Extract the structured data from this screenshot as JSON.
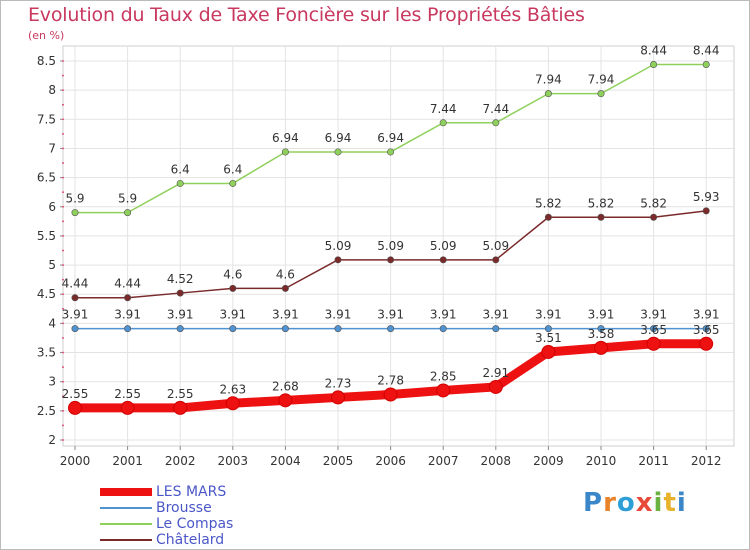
{
  "header": {
    "title": "Evolution du Taux de Taxe Foncière sur les Propriétés Bâties",
    "unit": "(en %)"
  },
  "brand": {
    "letters": [
      "P",
      "r",
      "o",
      "x",
      "i",
      "t",
      "i"
    ],
    "colors": [
      "#3a86c8",
      "#e8832a",
      "#2e9fd6",
      "#e84a3a",
      "#6ab33e",
      "#e8b22a",
      "#3a86c8"
    ]
  },
  "chart_data": {
    "type": "line",
    "title": "Evolution du Taux de Taxe Foncière sur les Propriétés Bâties",
    "ylabel": "(en %)",
    "x": [
      "2000",
      "2001",
      "2002",
      "2003",
      "2004",
      "2005",
      "2006",
      "2007",
      "2008",
      "2009",
      "2010",
      "2011",
      "2012"
    ],
    "ylim": [
      2,
      8.5
    ],
    "yticks": [
      "2",
      "2.5",
      "3",
      "3.5",
      "4",
      "4.5",
      "5",
      "5.5",
      "6",
      "6.5",
      "7",
      "7.5",
      "8",
      "8.5"
    ],
    "grid": true,
    "legend_position": "bottom-left",
    "series": [
      {
        "name": "LES MARS",
        "color": "#ee1111",
        "values": [
          2.55,
          2.55,
          2.55,
          2.63,
          2.68,
          2.73,
          2.78,
          2.85,
          2.91,
          3.51,
          3.58,
          3.65,
          3.65
        ],
        "labels": [
          "2.55",
          "2.55",
          "2.55",
          "2.63",
          "2.68",
          "2.73",
          "2.78",
          "2.85",
          "2.91",
          "3.51",
          "3.58",
          "3.65",
          "3.65"
        ]
      },
      {
        "name": "Brousse",
        "color": "#4f93d2",
        "values": [
          3.91,
          3.91,
          3.91,
          3.91,
          3.91,
          3.91,
          3.91,
          3.91,
          3.91,
          3.91,
          3.91,
          3.91,
          3.91
        ],
        "labels": [
          "3.91",
          "3.91",
          "3.91",
          "3.91",
          "3.91",
          "3.91",
          "3.91",
          "3.91",
          "3.91",
          "3.91",
          "3.91",
          "3.91",
          "3.91"
        ]
      },
      {
        "name": "Le Compas",
        "color": "#8fd05c",
        "values": [
          5.9,
          5.9,
          6.4,
          6.4,
          6.94,
          6.94,
          6.94,
          7.44,
          7.44,
          7.94,
          7.94,
          8.44,
          8.44
        ],
        "labels": [
          "5.9",
          "5.9",
          "6.4",
          "6.4",
          "6.94",
          "6.94",
          "6.94",
          "7.44",
          "7.44",
          "7.94",
          "7.94",
          "8.44",
          "8.44"
        ]
      },
      {
        "name": "Châtelard",
        "color": "#7a2a2a",
        "values": [
          4.44,
          4.44,
          4.52,
          4.6,
          4.6,
          5.09,
          5.09,
          5.09,
          5.09,
          5.82,
          5.82,
          5.82,
          5.93
        ],
        "labels": [
          "4.44",
          "4.44",
          "4.52",
          "4.6",
          "4.6",
          "5.09",
          "5.09",
          "5.09",
          "5.09",
          "5.82",
          "5.82",
          "5.82",
          "5.93"
        ]
      }
    ]
  }
}
